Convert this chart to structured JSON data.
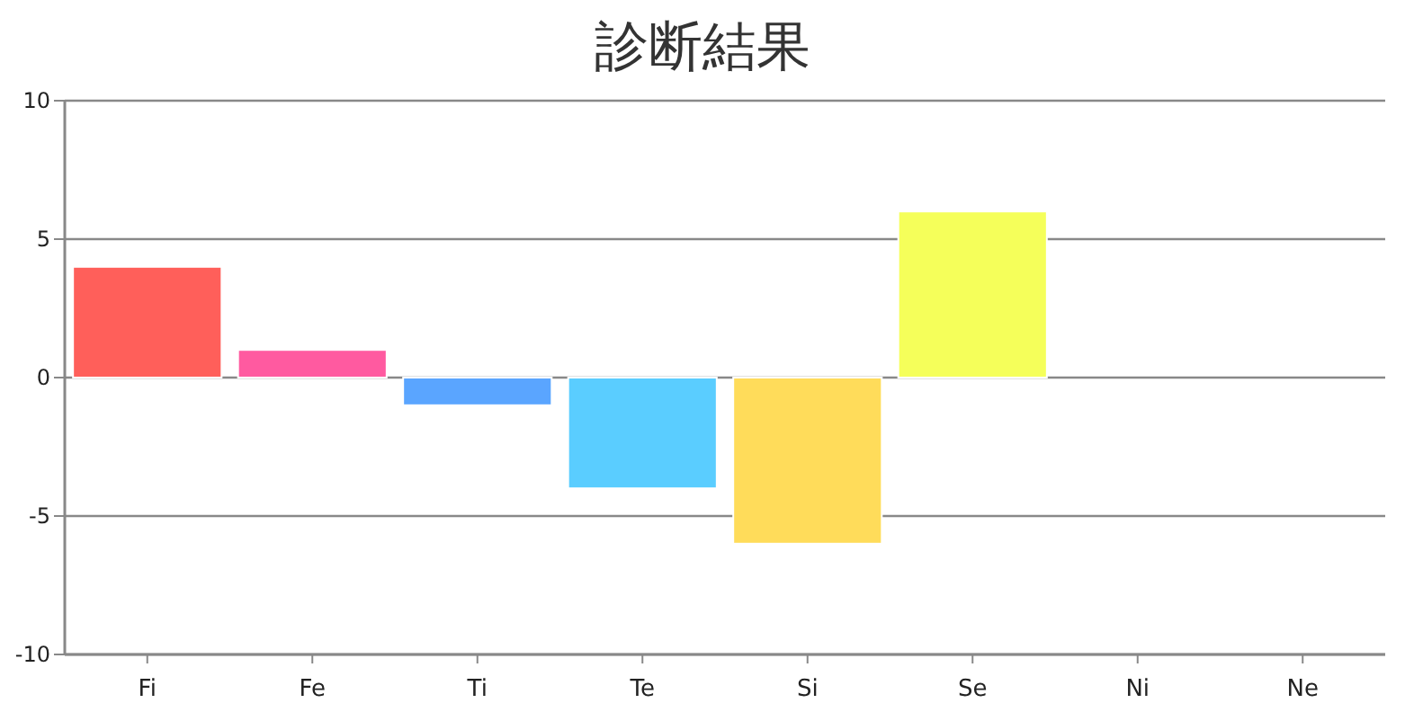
{
  "chart_data": {
    "type": "bar",
    "title": "診断結果",
    "categories": [
      "Fi",
      "Fe",
      "Ti",
      "Te",
      "Si",
      "Se",
      "Ni",
      "Ne"
    ],
    "values": [
      4,
      1,
      -1,
      -4,
      -6,
      6,
      null,
      null
    ],
    "colors": [
      "#ff5f5a",
      "#ff5aa0",
      "#5aa5ff",
      "#5acdff",
      "#ffdc5a",
      "#f5ff5a",
      null,
      null
    ],
    "ylim": [
      -10,
      10
    ],
    "yticks": [
      -10,
      -5,
      0,
      5,
      10
    ],
    "grid": "y"
  }
}
